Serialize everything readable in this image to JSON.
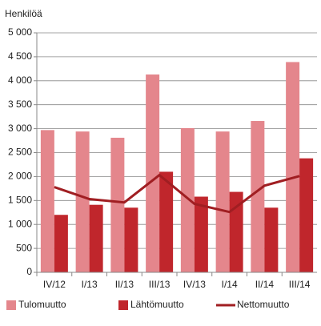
{
  "chart_data": {
    "type": "bar_line",
    "y_label": "Henkilöä",
    "categories": [
      "IV/12",
      "I/13",
      "II/13",
      "III/13",
      "IV/13",
      "I/14",
      "II/14",
      "III/14"
    ],
    "series": [
      {
        "name": "Tulomuutto",
        "type": "bar",
        "color": "#e4868c",
        "values": [
          2970,
          2940,
          2810,
          4130,
          3010,
          2940,
          3160,
          4390
        ]
      },
      {
        "name": "Lähtömuutto",
        "type": "bar",
        "color": "#c0262c",
        "values": [
          1200,
          1410,
          1350,
          2100,
          1580,
          1680,
          1350,
          2380
        ]
      },
      {
        "name": "Nettomuutto",
        "type": "line",
        "color": "#a01e22",
        "values": [
          1780,
          1530,
          1460,
          2030,
          1430,
          1260,
          1810,
          2010
        ]
      }
    ],
    "ylim": [
      0,
      5000
    ],
    "yticks": [
      0,
      500,
      {
        "value": 1000,
        "label": "1 000"
      },
      {
        "value": 1500,
        "label": "1 500"
      },
      {
        "value": 2000,
        "label": "2 000"
      },
      {
        "value": 2500,
        "label": "2 500"
      },
      {
        "value": 3000,
        "label": "3 000"
      },
      {
        "value": 3500,
        "label": "3 500"
      },
      {
        "value": 4000,
        "label": "4 000"
      },
      {
        "value": 4500,
        "label": "4 500"
      },
      {
        "value": 5000,
        "label": "5 000"
      }
    ],
    "grid": true,
    "legend": "bottom"
  }
}
